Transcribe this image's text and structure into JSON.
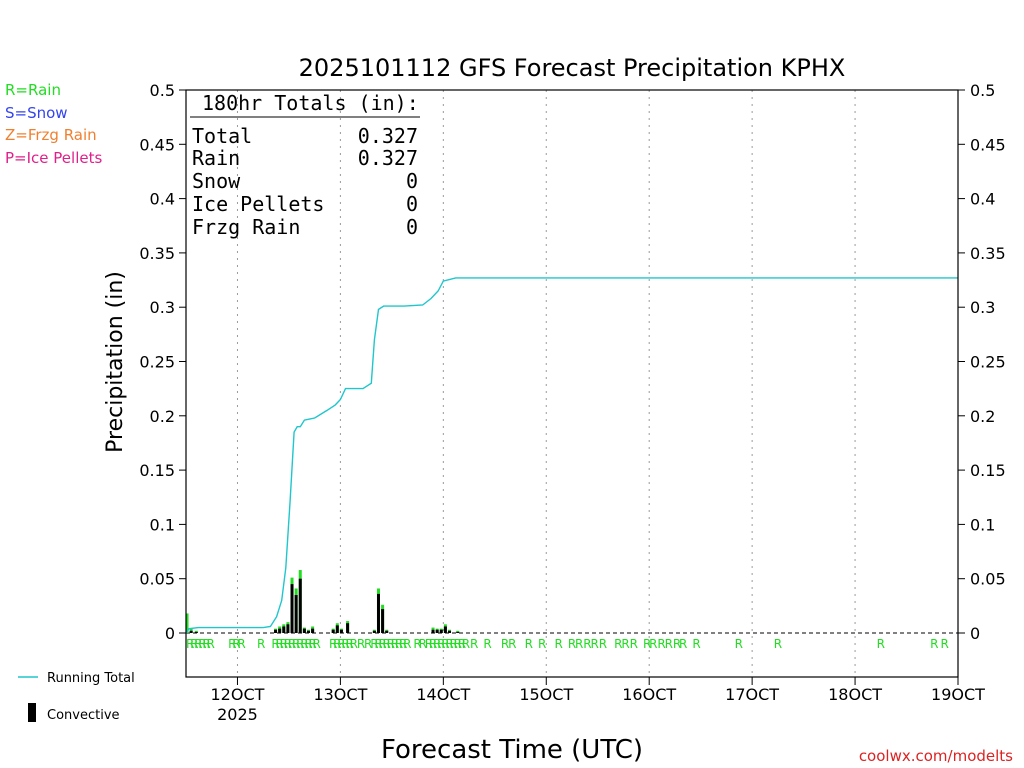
{
  "chart_data": {
    "type": "bar+line",
    "title": "2025101112 GFS Forecast Precipitation KPHX",
    "xlabel": "Forecast Time (UTC)",
    "ylabel": "Precipitation (in)",
    "credit": "coolwx.com/modelts",
    "ylim": [
      0,
      0.5
    ],
    "xlim_days": [
      11.5,
      19.0
    ],
    "y_ticks": [
      "0",
      "0.05",
      "0.1",
      "0.15",
      "0.2",
      "0.25",
      "0.3",
      "0.35",
      "0.4",
      "0.45",
      "0.5"
    ],
    "x_ticks": [
      {
        "day": 12,
        "label": "12OCT",
        "sub": "2025"
      },
      {
        "day": 13,
        "label": "13OCT",
        "sub": ""
      },
      {
        "day": 14,
        "label": "14OCT",
        "sub": ""
      },
      {
        "day": 15,
        "label": "15OCT",
        "sub": ""
      },
      {
        "day": 16,
        "label": "16OCT",
        "sub": ""
      },
      {
        "day": 17,
        "label": "17OCT",
        "sub": ""
      },
      {
        "day": 18,
        "label": "18OCT",
        "sub": ""
      },
      {
        "day": 19,
        "label": "19OCT",
        "sub": ""
      }
    ],
    "precip_type_legend": [
      {
        "label": "R=Rain",
        "color": "#22dd22"
      },
      {
        "label": "S=Snow",
        "color": "#3344ee"
      },
      {
        "label": "Z=Frzg Rain",
        "color": "#f08030"
      },
      {
        "label": "P=Ice Pellets",
        "color": "#e0208a"
      }
    ],
    "series_legend": [
      {
        "label": "Running Total",
        "color": "#1fc6cc",
        "kind": "line"
      },
      {
        "label": "Convective",
        "color": "#000000",
        "kind": "bar"
      }
    ],
    "totals_box": {
      "heading": "180hr Totals (in):",
      "rows": [
        {
          "label": "Total",
          "value": "0.327"
        },
        {
          "label": "Rain",
          "value": "0.327"
        },
        {
          "label": "Snow",
          "value": "0"
        },
        {
          "label": "Ice Pellets",
          "value": "0"
        },
        {
          "label": "Frzg Rain",
          "value": "0"
        }
      ]
    },
    "running_total": {
      "x": [
        11.5,
        11.53,
        11.62,
        12.0,
        12.25,
        12.32,
        12.38,
        12.43,
        12.47,
        12.51,
        12.55,
        12.58,
        12.61,
        12.65,
        12.7,
        12.75,
        12.87,
        12.95,
        13.0,
        13.05,
        13.1,
        13.22,
        13.3,
        13.33,
        13.37,
        13.42,
        13.5,
        13.62,
        13.8,
        13.88,
        13.95,
        14.0,
        14.12,
        14.2,
        19.0
      ],
      "y": [
        0.0,
        0.004,
        0.005,
        0.005,
        0.005,
        0.006,
        0.015,
        0.03,
        0.06,
        0.12,
        0.185,
        0.19,
        0.19,
        0.196,
        0.197,
        0.198,
        0.205,
        0.21,
        0.215,
        0.225,
        0.225,
        0.225,
        0.23,
        0.27,
        0.298,
        0.301,
        0.301,
        0.301,
        0.302,
        0.308,
        0.315,
        0.324,
        0.327,
        0.327,
        0.327
      ]
    },
    "bars": [
      {
        "t": 11.51,
        "total": 0.018,
        "conv": 0.0
      },
      {
        "t": 11.55,
        "total": 0.004,
        "conv": 0.002
      },
      {
        "t": 11.6,
        "total": 0.002,
        "conv": 0.001
      },
      {
        "t": 12.37,
        "total": 0.004,
        "conv": 0.003
      },
      {
        "t": 12.41,
        "total": 0.006,
        "conv": 0.004
      },
      {
        "t": 12.45,
        "total": 0.008,
        "conv": 0.006
      },
      {
        "t": 12.49,
        "total": 0.01,
        "conv": 0.008
      },
      {
        "t": 12.53,
        "total": 0.051,
        "conv": 0.045
      },
      {
        "t": 12.57,
        "total": 0.041,
        "conv": 0.035
      },
      {
        "t": 12.61,
        "total": 0.058,
        "conv": 0.05
      },
      {
        "t": 12.65,
        "total": 0.005,
        "conv": 0.004
      },
      {
        "t": 12.69,
        "total": 0.003,
        "conv": 0.002
      },
      {
        "t": 12.73,
        "total": 0.006,
        "conv": 0.004
      },
      {
        "t": 12.93,
        "total": 0.004,
        "conv": 0.003
      },
      {
        "t": 12.97,
        "total": 0.009,
        "conv": 0.007
      },
      {
        "t": 13.01,
        "total": 0.004,
        "conv": 0.003
      },
      {
        "t": 13.07,
        "total": 0.011,
        "conv": 0.009
      },
      {
        "t": 13.33,
        "total": 0.003,
        "conv": 0.002
      },
      {
        "t": 13.37,
        "total": 0.041,
        "conv": 0.036
      },
      {
        "t": 13.41,
        "total": 0.026,
        "conv": 0.022
      },
      {
        "t": 13.45,
        "total": 0.003,
        "conv": 0.002
      },
      {
        "t": 13.9,
        "total": 0.005,
        "conv": 0.003
      },
      {
        "t": 13.94,
        "total": 0.004,
        "conv": 0.003
      },
      {
        "t": 13.98,
        "total": 0.004,
        "conv": 0.003
      },
      {
        "t": 14.02,
        "total": 0.008,
        "conv": 0.006
      },
      {
        "t": 14.06,
        "total": 0.003,
        "conv": 0.002
      },
      {
        "t": 14.14,
        "total": 0.002,
        "conv": 0.001
      }
    ],
    "rain_markers": {
      "symbol": "R",
      "t": [
        11.54,
        11.58,
        11.62,
        11.66,
        11.7,
        11.74,
        11.95,
        11.99,
        12.04,
        12.23,
        12.37,
        12.41,
        12.45,
        12.49,
        12.53,
        12.57,
        12.61,
        12.65,
        12.69,
        12.73,
        12.77,
        12.93,
        12.97,
        13.01,
        13.05,
        13.09,
        13.13,
        13.2,
        13.27,
        13.33,
        13.37,
        13.41,
        13.45,
        13.49,
        13.53,
        13.57,
        13.61,
        13.65,
        13.75,
        13.8,
        13.86,
        13.9,
        13.94,
        13.98,
        14.02,
        14.06,
        14.1,
        14.14,
        14.18,
        14.22,
        14.3,
        14.43,
        14.6,
        14.67,
        14.83,
        14.96,
        15.12,
        15.25,
        15.32,
        15.4,
        15.47,
        15.55,
        15.7,
        15.77,
        15.85,
        15.98,
        16.04,
        16.12,
        16.19,
        16.27,
        16.33,
        16.46,
        16.87,
        17.25,
        18.25,
        18.77,
        18.87
      ]
    }
  }
}
